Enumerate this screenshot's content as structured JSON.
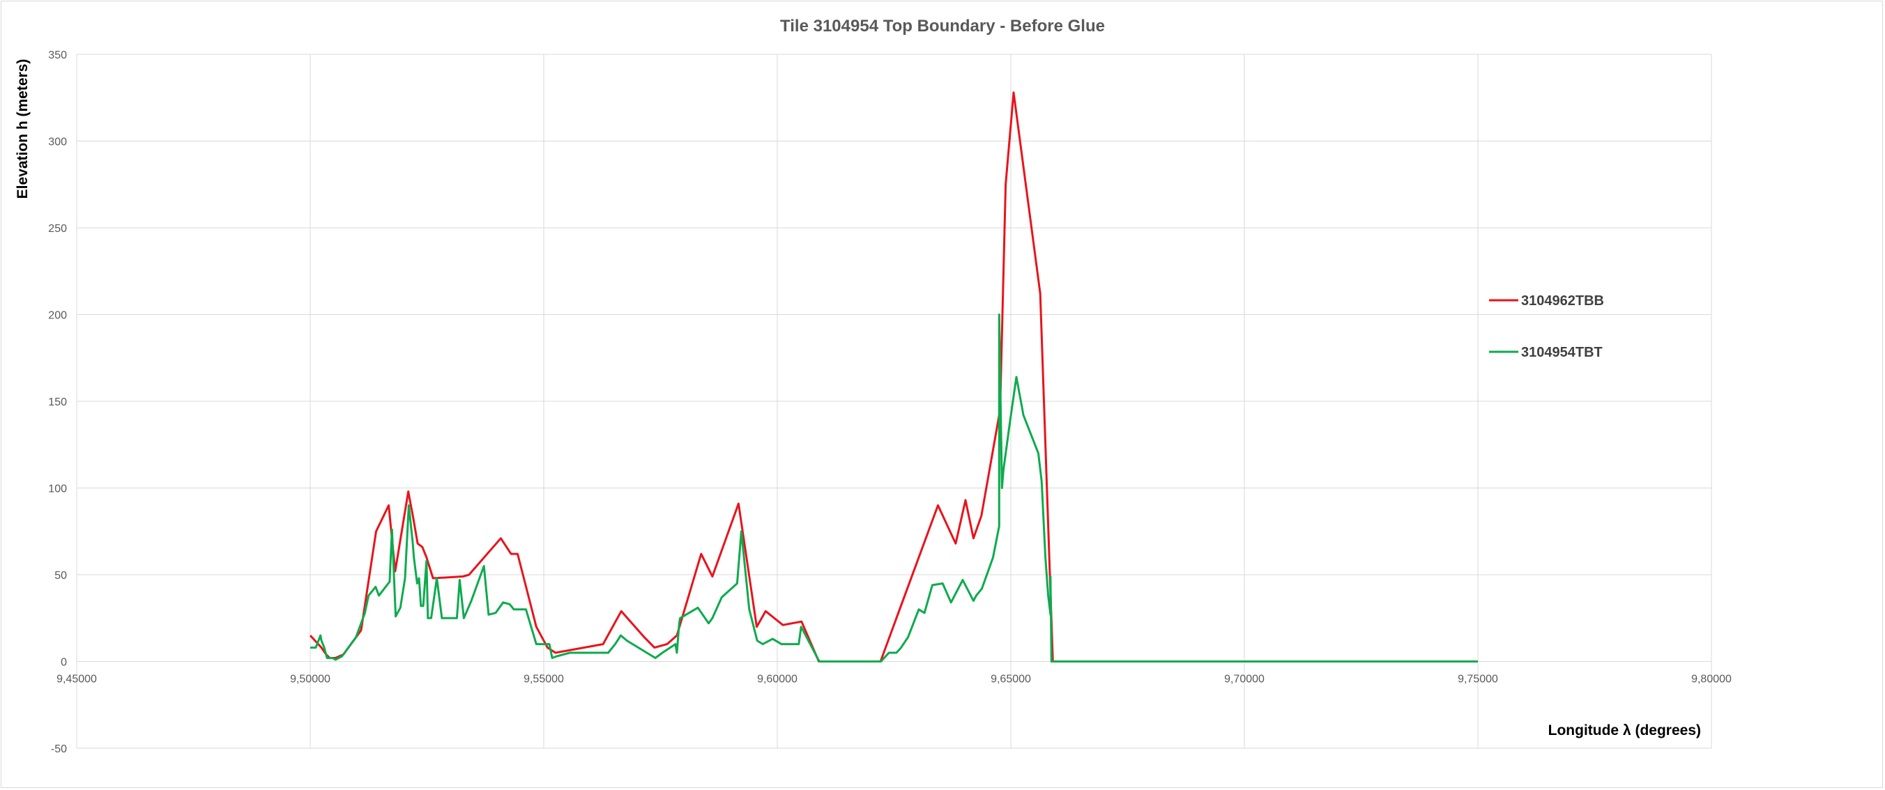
{
  "chart_data": {
    "type": "line",
    "title": "Tile 3104954 Top Boundary - Before Glue",
    "xlabel": "Longitude λ (degrees)",
    "ylabel": "Elevation h  (meters)",
    "xlim": [
      9.45,
      9.8
    ],
    "ylim": [
      -50,
      350
    ],
    "xticks": [
      9.45,
      9.5,
      9.55,
      9.6,
      9.65,
      9.7,
      9.75,
      9.8
    ],
    "xtick_labels": [
      "9,45000",
      "9,50000",
      "9,55000",
      "9,60000",
      "9,65000",
      "9,70000",
      "9,75000",
      "9,80000"
    ],
    "yticks": [
      -50,
      0,
      50,
      100,
      150,
      200,
      250,
      300,
      350
    ],
    "ytick_labels": [
      "-50",
      "0",
      "50",
      "100",
      "150",
      "200",
      "250",
      "300",
      "350"
    ],
    "grid": true,
    "legend_position": "right",
    "series": [
      {
        "name": "3104962TBB",
        "color": "#e8131b",
        "x": [
          9.5,
          9.5024,
          9.5034,
          9.5042,
          9.5054,
          9.5071,
          9.5109,
          9.5141,
          9.5168,
          9.5182,
          9.521,
          9.5221,
          9.523,
          9.524,
          9.5249,
          9.5263,
          9.5327,
          9.534,
          9.5408,
          9.543,
          9.5444,
          9.5484,
          9.5508,
          9.5525,
          9.5627,
          9.5666,
          9.5715,
          9.5737,
          9.5764,
          9.5785,
          9.5837,
          9.5861,
          9.5917,
          9.5956,
          9.5975,
          9.6012,
          9.6052,
          9.6089,
          9.6221,
          9.6262,
          9.6344,
          9.6382,
          9.6403,
          9.642,
          9.6437,
          9.6477,
          9.6489,
          9.6506,
          9.6563,
          9.659,
          9.66
        ],
        "y": [
          15,
          8,
          4,
          2,
          2,
          4,
          18,
          75,
          90,
          52,
          98,
          82,
          68,
          66,
          60,
          48,
          49,
          50,
          71,
          62,
          62,
          20,
          8,
          5,
          10,
          29,
          14,
          8,
          10,
          15,
          62,
          49,
          91,
          20,
          29,
          21,
          23,
          0,
          0,
          30,
          90,
          68,
          93,
          71,
          84,
          145,
          275,
          328,
          212,
          0,
          0
        ]
      },
      {
        "name": "3104954TBT",
        "color": "#0daa4e",
        "x": [
          9.5,
          9.5012,
          9.5022,
          9.5024,
          9.503,
          9.5036,
          9.5042,
          9.5048,
          9.5054,
          9.5068,
          9.5098,
          9.5117,
          9.5125,
          9.514,
          9.5147,
          9.517,
          9.5175,
          9.5183,
          9.5193,
          9.5203,
          9.5211,
          9.5219,
          9.5222,
          9.5229,
          9.5233,
          9.5237,
          9.5242,
          9.5249,
          9.5252,
          9.5259,
          9.5271,
          9.5282,
          9.5292,
          9.5314,
          9.532,
          9.5329,
          9.5345,
          9.5372,
          9.5382,
          9.5397,
          9.5413,
          9.5427,
          9.5436,
          9.5442,
          9.5462,
          9.5484,
          9.5512,
          9.5518,
          9.5528,
          9.5556,
          9.562,
          9.5638,
          9.5653,
          9.5665,
          9.5678,
          9.5739,
          9.5754,
          9.5782,
          9.5785,
          9.579,
          9.5792,
          9.583,
          9.5853,
          9.5861,
          9.5881,
          9.5914,
          9.5923,
          9.594,
          9.5957,
          9.5969,
          9.599,
          9.6009,
          9.6032,
          9.6046,
          9.6051,
          9.609,
          9.6222,
          9.6239,
          9.6255,
          9.6265,
          9.628,
          9.6303,
          9.6315,
          9.6332,
          9.6354,
          9.6372,
          9.6397,
          9.642,
          9.6426,
          9.6438,
          9.6462,
          9.6475,
          9.6475,
          9.6481,
          9.6484,
          9.6498,
          9.6512,
          9.6527,
          9.6559,
          9.6566,
          9.6574,
          9.658,
          9.6585,
          9.6585,
          9.6587,
          9.6592,
          9.6598,
          9.6625,
          9.75
        ],
        "y": [
          8,
          8,
          15,
          12,
          8,
          2,
          2,
          2,
          1,
          3,
          14,
          28,
          38,
          43,
          38,
          46,
          76,
          26,
          31,
          48,
          90,
          70,
          60,
          45,
          48,
          32,
          32,
          58,
          25,
          25,
          48,
          25,
          25,
          25,
          47,
          25,
          35,
          55,
          27,
          28,
          34,
          33,
          30,
          30,
          30,
          10,
          10,
          2,
          3,
          5,
          5,
          5,
          10,
          15,
          12,
          2,
          5,
          10,
          5,
          22,
          25,
          31,
          22,
          25,
          37,
          45,
          75,
          30,
          12,
          10,
          13,
          10,
          10,
          10,
          20,
          0,
          0,
          5,
          5,
          8,
          14,
          30,
          28,
          44,
          45,
          34,
          47,
          35,
          38,
          42,
          60,
          78,
          200,
          100,
          110,
          138,
          164,
          142,
          120,
          104,
          60,
          38,
          27,
          49,
          0,
          0,
          0,
          0,
          0
        ]
      }
    ]
  }
}
